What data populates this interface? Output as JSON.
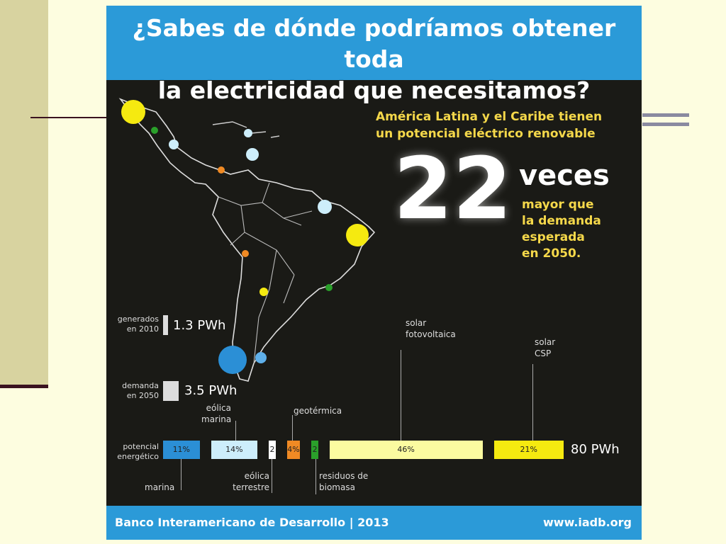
{
  "header": {
    "title_line1": "¿Sabes de dónde podríamos obtener toda",
    "title_line2": "la electricidad que necesitamos?"
  },
  "headline": {
    "line1": "América Latina y el Caribe tienen",
    "line2": "un potencial eléctrico renovable",
    "number": "22",
    "unit": "veces",
    "sub1": "mayor que",
    "sub2": "la demanda",
    "sub3": "esperada",
    "sub4": "en 2050."
  },
  "stats": {
    "generated_label1": "generados",
    "generated_label2": "en 2010",
    "generated_value": "1.3 PWh",
    "demand_label1": "demanda",
    "demand_label2": "en 2050",
    "demand_value": "3.5 PWh"
  },
  "chart_data": {
    "type": "bar",
    "row_label_1": "potencial",
    "row_label_2": "energético",
    "total": "80 PWh",
    "segments": [
      {
        "name": "marina",
        "label": "11%",
        "value": 11,
        "color": "#2b8fd6"
      },
      {
        "name": "eólica marina",
        "label": "14%",
        "value": 14,
        "color": "#cdeefb"
      },
      {
        "name": "eólica terrestre",
        "label": "2",
        "value": 2,
        "color": "#ffffff"
      },
      {
        "name": "geotérmica",
        "label": "4%",
        "value": 4,
        "color": "#f08a24"
      },
      {
        "name": "residuos de biomasa",
        "label": "2",
        "value": 2,
        "color": "#2aa02a"
      },
      {
        "name": "solar fotovoltaica",
        "label": "46%",
        "value": 46,
        "color": "#fbfba0"
      },
      {
        "name": "solar CSP",
        "label": "21%",
        "value": 21,
        "color": "#f5ea10"
      }
    ]
  },
  "bar_labels": {
    "eolica_marina_1": "eólica",
    "eolica_marina_2": "marina",
    "geotermica": "geotérmica",
    "solar_fv_1": "solar",
    "solar_fv_2": "fotovoltaica",
    "solar_csp_1": "solar",
    "solar_csp_2": "CSP",
    "marina": "marina",
    "eolica_terrestre_1": "eólica",
    "eolica_terrestre_2": "terrestre",
    "biomasa_1": "residuos de",
    "biomasa_2": "biomasa"
  },
  "footer": {
    "org": "Banco Interamericano de Desarrollo | 2013",
    "url": "www.iadb.org"
  },
  "colors": {
    "header_blue": "#2b9ad8",
    "panel_dark": "#1a1a16",
    "highlight_yellow": "#f5d84a"
  }
}
